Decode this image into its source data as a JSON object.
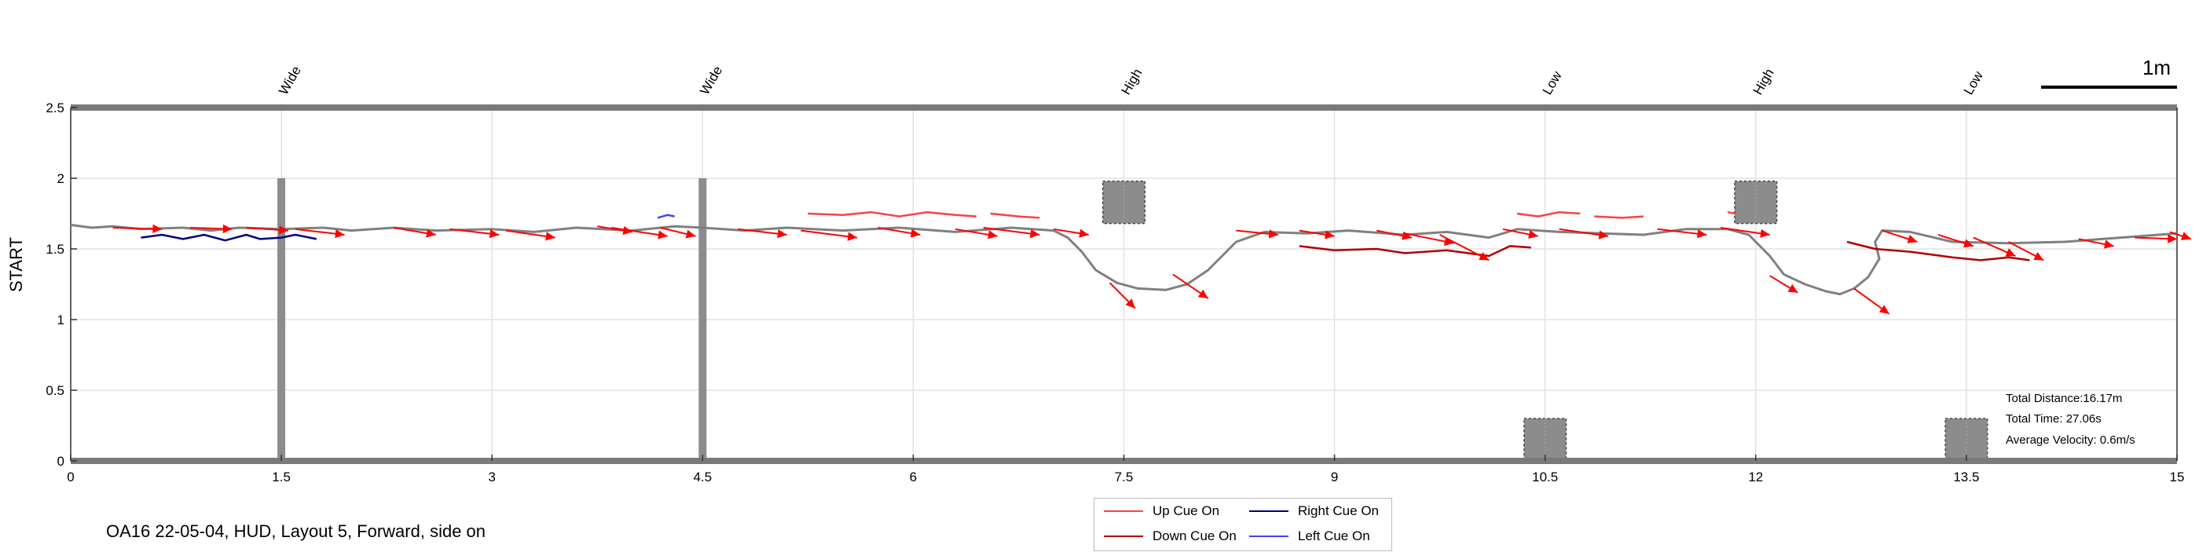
{
  "chart_data": {
    "type": "line",
    "title": "",
    "xlabel": "",
    "ylabel": "START",
    "xlim": [
      0,
      15
    ],
    "ylim": [
      0,
      2.5
    ],
    "x_ticks": [
      0,
      1.5,
      3,
      4.5,
      6,
      7.5,
      9,
      10.5,
      12,
      13.5,
      15
    ],
    "x_tick_labels": [
      "0",
      "1.5",
      "3",
      "4.5",
      "6",
      "7.5",
      "9",
      "10.5",
      "12",
      "13.5",
      "15"
    ],
    "y_ticks": [
      0,
      0.5,
      1,
      1.5,
      2,
      2.5
    ],
    "y_tick_labels": [
      "0",
      "0.5",
      "1",
      "1.5",
      "2",
      "2.5"
    ],
    "grid": true,
    "legend_position": "bottom-center",
    "scale_bar": {
      "label": "1m",
      "length": 1
    },
    "obstacles": [
      {
        "label": "Wide",
        "x": 1.5,
        "shape": "post",
        "y_range": [
          0,
          2
        ]
      },
      {
        "label": "Wide",
        "x": 4.5,
        "shape": "post",
        "y_range": [
          0,
          2
        ]
      },
      {
        "label": "High",
        "x": 7.5,
        "shape": "block",
        "y_range": [
          1.68,
          1.98
        ]
      },
      {
        "label": "Low",
        "x": 10.5,
        "shape": "block",
        "y_range": [
          0,
          0.3
        ]
      },
      {
        "label": "High",
        "x": 12,
        "shape": "block",
        "y_range": [
          1.68,
          1.98
        ]
      },
      {
        "label": "Low",
        "x": 13.5,
        "shape": "block",
        "y_range": [
          0,
          0.3
        ]
      }
    ],
    "series": [
      {
        "name": "",
        "role": "trajectory",
        "color": "#808080",
        "points": [
          [
            0.0,
            1.67
          ],
          [
            0.15,
            1.65
          ],
          [
            0.3,
            1.66
          ],
          [
            0.5,
            1.64
          ],
          [
            0.8,
            1.65
          ],
          [
            1.0,
            1.63
          ],
          [
            1.2,
            1.65
          ],
          [
            1.5,
            1.64
          ],
          [
            1.8,
            1.65
          ],
          [
            2.0,
            1.63
          ],
          [
            2.3,
            1.65
          ],
          [
            2.6,
            1.63
          ],
          [
            3.0,
            1.64
          ],
          [
            3.3,
            1.62
          ],
          [
            3.6,
            1.65
          ],
          [
            4.0,
            1.63
          ],
          [
            4.3,
            1.66
          ],
          [
            4.5,
            1.65
          ],
          [
            4.8,
            1.63
          ],
          [
            5.1,
            1.65
          ],
          [
            5.5,
            1.63
          ],
          [
            5.9,
            1.65
          ],
          [
            6.3,
            1.62
          ],
          [
            6.7,
            1.65
          ],
          [
            7.0,
            1.63
          ],
          [
            7.1,
            1.58
          ],
          [
            7.2,
            1.48
          ],
          [
            7.3,
            1.35
          ],
          [
            7.45,
            1.26
          ],
          [
            7.6,
            1.22
          ],
          [
            7.8,
            1.21
          ],
          [
            7.95,
            1.25
          ],
          [
            8.1,
            1.35
          ],
          [
            8.2,
            1.45
          ],
          [
            8.3,
            1.55
          ],
          [
            8.5,
            1.62
          ],
          [
            8.8,
            1.61
          ],
          [
            9.1,
            1.63
          ],
          [
            9.5,
            1.6
          ],
          [
            9.8,
            1.62
          ],
          [
            10.1,
            1.58
          ],
          [
            10.3,
            1.64
          ],
          [
            10.6,
            1.62
          ],
          [
            10.9,
            1.61
          ],
          [
            11.2,
            1.6
          ],
          [
            11.5,
            1.64
          ],
          [
            11.8,
            1.64
          ],
          [
            11.95,
            1.6
          ],
          [
            12.1,
            1.45
          ],
          [
            12.2,
            1.32
          ],
          [
            12.35,
            1.25
          ],
          [
            12.5,
            1.2
          ],
          [
            12.6,
            1.18
          ],
          [
            12.7,
            1.22
          ],
          [
            12.8,
            1.3
          ],
          [
            12.88,
            1.43
          ],
          [
            12.85,
            1.55
          ],
          [
            12.9,
            1.63
          ],
          [
            13.1,
            1.62
          ],
          [
            13.4,
            1.55
          ],
          [
            13.8,
            1.54
          ],
          [
            14.2,
            1.55
          ],
          [
            14.6,
            1.58
          ],
          [
            15.0,
            1.61
          ]
        ]
      },
      {
        "name": "Up Cue On",
        "role": "cue",
        "color": "#ff4040",
        "segments": [
          [
            [
              5.25,
              1.75
            ],
            [
              5.5,
              1.74
            ],
            [
              5.7,
              1.76
            ],
            [
              5.9,
              1.73
            ],
            [
              6.1,
              1.76
            ],
            [
              6.3,
              1.74
            ],
            [
              6.45,
              1.73
            ]
          ],
          [
            [
              6.55,
              1.75
            ],
            [
              6.75,
              1.73
            ],
            [
              6.9,
              1.72
            ]
          ],
          [
            [
              10.3,
              1.75
            ],
            [
              10.45,
              1.73
            ],
            [
              10.6,
              1.76
            ],
            [
              10.75,
              1.75
            ]
          ],
          [
            [
              10.85,
              1.73
            ],
            [
              11.05,
              1.72
            ],
            [
              11.2,
              1.73
            ]
          ],
          [
            [
              11.8,
              1.76
            ],
            [
              11.85,
              1.75
            ]
          ]
        ]
      },
      {
        "name": "Down Cue On",
        "role": "cue",
        "color": "#b00000",
        "segments": [
          [
            [
              8.75,
              1.52
            ],
            [
              9.0,
              1.49
            ],
            [
              9.3,
              1.5
            ],
            [
              9.5,
              1.47
            ],
            [
              9.8,
              1.49
            ],
            [
              10.1,
              1.45
            ],
            [
              10.25,
              1.52
            ],
            [
              10.4,
              1.51
            ]
          ],
          [
            [
              12.65,
              1.55
            ],
            [
              12.85,
              1.5
            ],
            [
              13.1,
              1.48
            ],
            [
              13.4,
              1.44
            ],
            [
              13.6,
              1.42
            ],
            [
              13.8,
              1.44
            ],
            [
              13.95,
              1.42
            ]
          ]
        ]
      },
      {
        "name": "Right Cue On",
        "role": "cue",
        "color": "#000080",
        "segments": [
          [
            [
              0.5,
              1.58
            ],
            [
              0.65,
              1.6
            ],
            [
              0.8,
              1.57
            ],
            [
              0.95,
              1.6
            ],
            [
              1.1,
              1.56
            ],
            [
              1.25,
              1.6
            ],
            [
              1.35,
              1.57
            ],
            [
              1.5,
              1.58
            ],
            [
              1.6,
              1.6
            ],
            [
              1.75,
              1.57
            ]
          ]
        ]
      },
      {
        "name": "Left Cue On",
        "role": "cue",
        "color": "#4040ff",
        "segments": [
          [
            [
              4.18,
              1.72
            ],
            [
              4.25,
              1.74
            ],
            [
              4.3,
              1.73
            ]
          ]
        ]
      }
    ],
    "arrows": [
      [
        0.3,
        1.65,
        0.65,
        1.64
      ],
      [
        0.85,
        1.65,
        1.15,
        1.64
      ],
      [
        1.25,
        1.65,
        1.55,
        1.63
      ],
      [
        1.6,
        1.64,
        1.95,
        1.6
      ],
      [
        2.3,
        1.65,
        2.6,
        1.6
      ],
      [
        2.7,
        1.64,
        3.05,
        1.6
      ],
      [
        3.1,
        1.63,
        3.45,
        1.58
      ],
      [
        3.75,
        1.66,
        4.0,
        1.62
      ],
      [
        3.85,
        1.65,
        4.25,
        1.59
      ],
      [
        4.2,
        1.65,
        4.45,
        1.59
      ],
      [
        4.75,
        1.64,
        5.1,
        1.6
      ],
      [
        5.2,
        1.63,
        5.6,
        1.58
      ],
      [
        5.75,
        1.65,
        6.05,
        1.6
      ],
      [
        6.3,
        1.64,
        6.6,
        1.59
      ],
      [
        6.5,
        1.65,
        6.9,
        1.6
      ],
      [
        7.0,
        1.64,
        7.25,
        1.6
      ],
      [
        7.4,
        1.26,
        7.58,
        1.08
      ],
      [
        7.85,
        1.32,
        8.1,
        1.15
      ],
      [
        8.3,
        1.63,
        8.6,
        1.6
      ],
      [
        8.75,
        1.63,
        9.0,
        1.59
      ],
      [
        9.3,
        1.63,
        9.55,
        1.58
      ],
      [
        9.5,
        1.61,
        9.85,
        1.54
      ],
      [
        9.75,
        1.6,
        10.1,
        1.42
      ],
      [
        10.2,
        1.64,
        10.45,
        1.59
      ],
      [
        10.6,
        1.64,
        10.95,
        1.59
      ],
      [
        11.3,
        1.64,
        11.65,
        1.6
      ],
      [
        11.75,
        1.65,
        12.1,
        1.6
      ],
      [
        12.1,
        1.31,
        12.3,
        1.19
      ],
      [
        12.7,
        1.22,
        12.95,
        1.04
      ],
      [
        12.9,
        1.63,
        13.15,
        1.55
      ],
      [
        13.3,
        1.6,
        13.55,
        1.52
      ],
      [
        13.55,
        1.58,
        13.85,
        1.45
      ],
      [
        13.8,
        1.55,
        14.05,
        1.42
      ],
      [
        14.3,
        1.57,
        14.55,
        1.52
      ],
      [
        14.7,
        1.58,
        15.0,
        1.57
      ],
      [
        14.95,
        1.62,
        15.1,
        1.57
      ]
    ],
    "stats": {
      "total_distance": "Total Distance:16.17m",
      "total_time": "Total Time: 27.06s",
      "average_velocity": "Average Velocity: 0.6m/s"
    }
  },
  "caption": "OA16 22-05-04, HUD, Layout 5, Forward, side on",
  "legend": [
    {
      "label": "Up Cue On",
      "color": "#ff4040"
    },
    {
      "label": "Right Cue On",
      "color": "#000080"
    },
    {
      "label": "Down Cue On",
      "color": "#b00000"
    },
    {
      "label": "Left Cue On",
      "color": "#4040ff"
    }
  ]
}
